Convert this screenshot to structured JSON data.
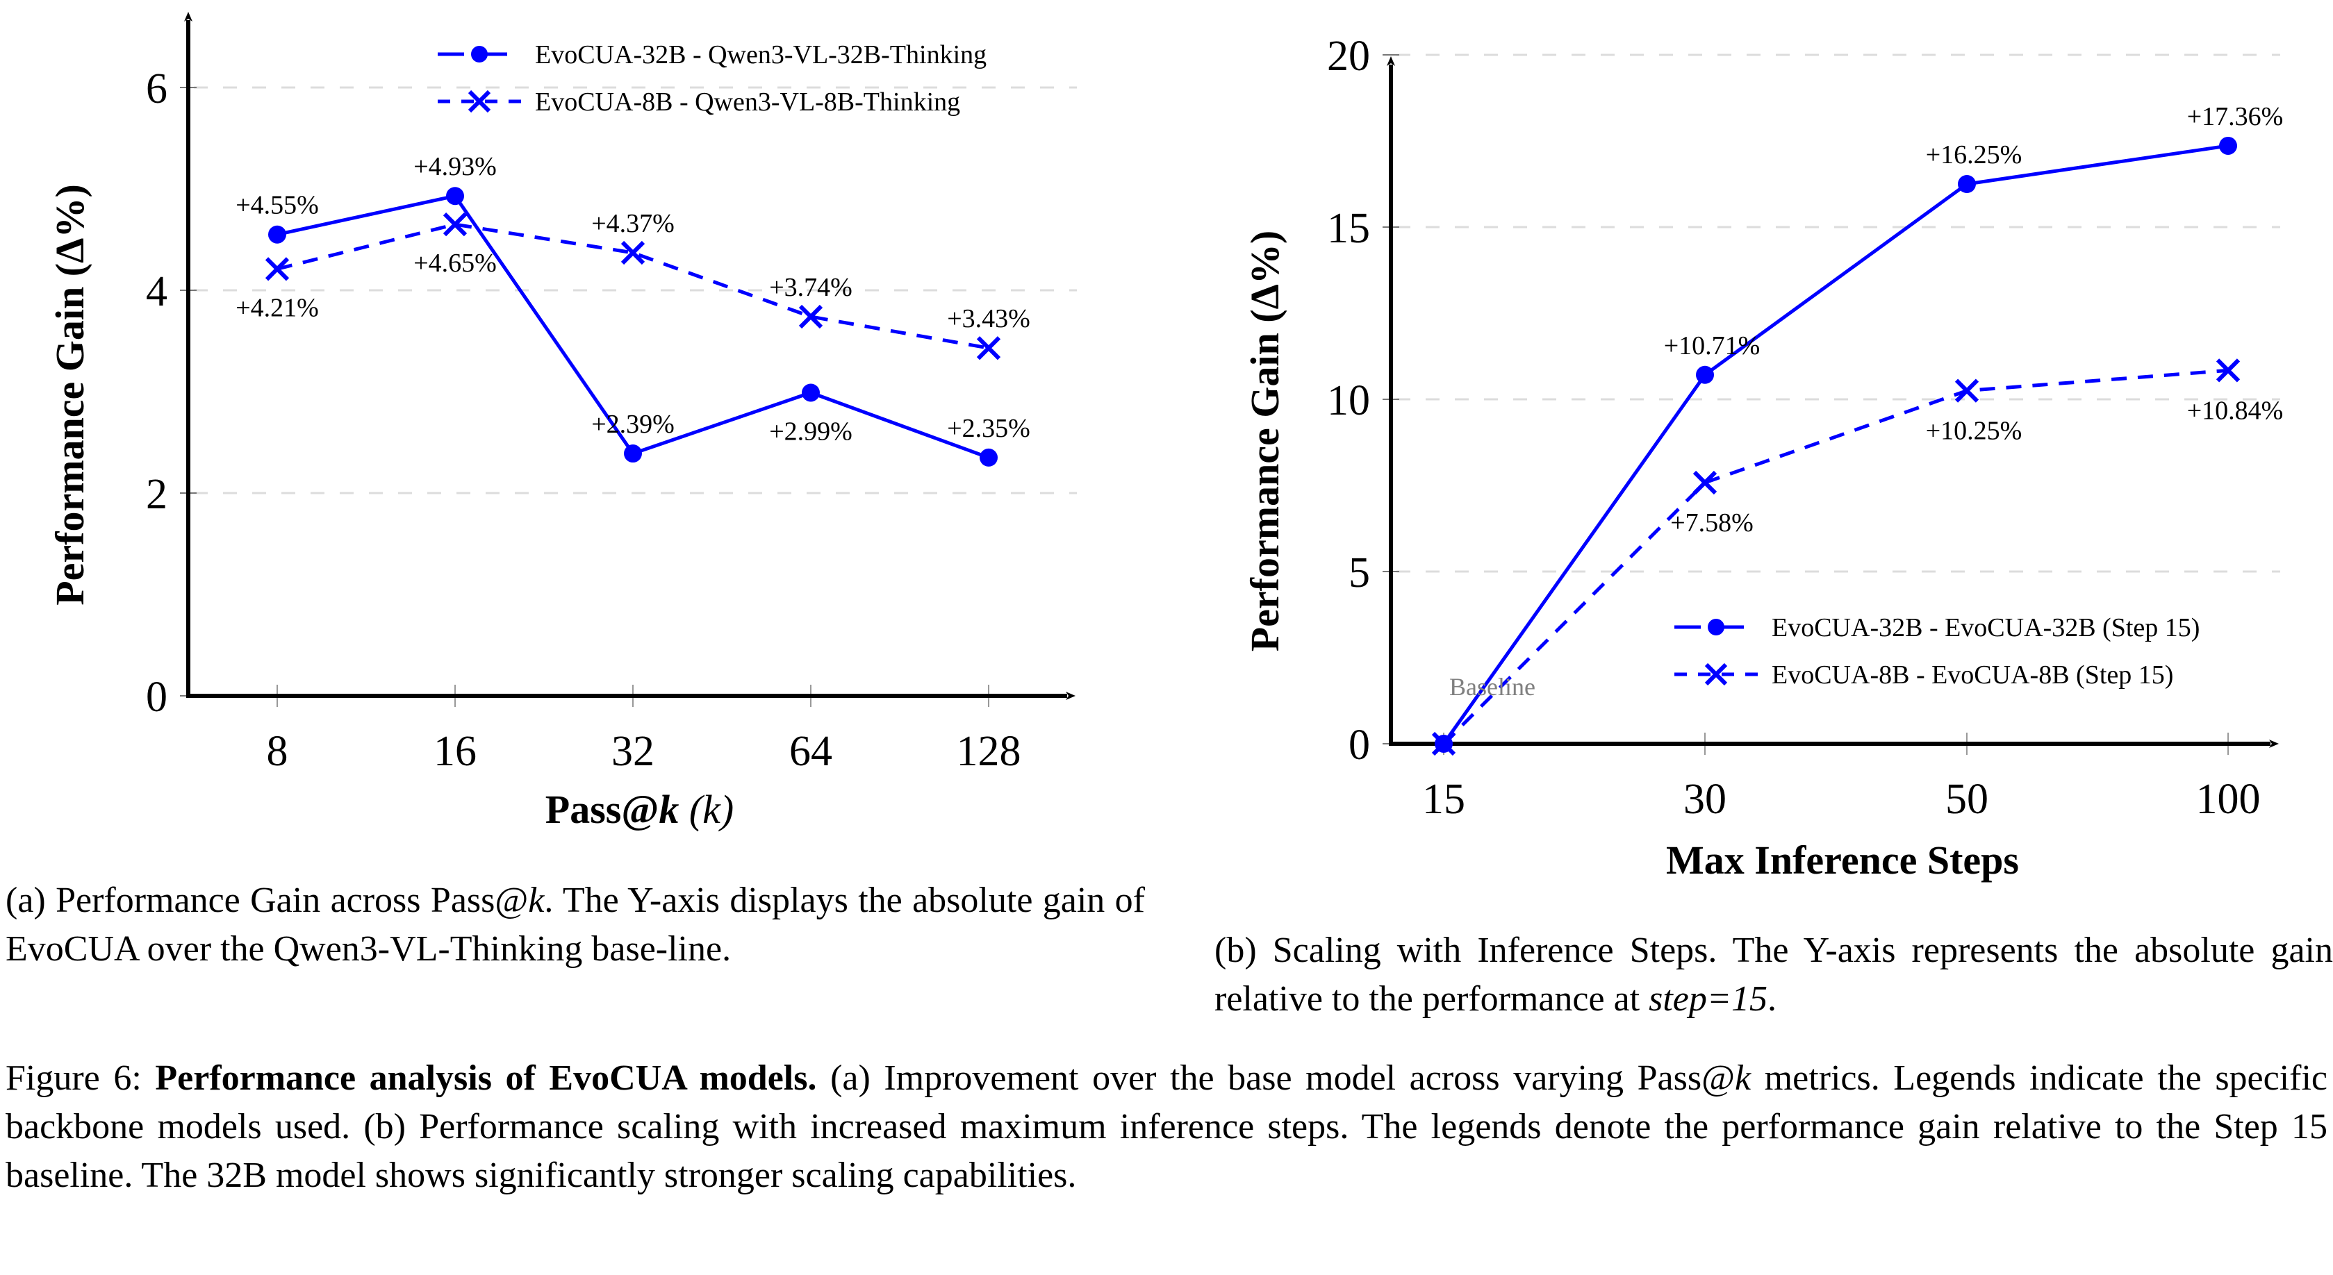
{
  "chart_data": [
    {
      "id": "a",
      "type": "line",
      "title": "",
      "xlabel": "Pass@k (k)",
      "xlabel_parts": {
        "bold": "Pass@",
        "bold_italic": "k",
        "rest": " (k)"
      },
      "ylabel": "Performance Gain (Δ%)",
      "categories": [
        "8",
        "16",
        "32",
        "64",
        "128"
      ],
      "x_scale": "categorical",
      "ylim": [
        0,
        6.8
      ],
      "yticks": [
        0,
        2,
        4,
        6
      ],
      "grid": "horizontal dashed",
      "legend_position": "top-right",
      "series": [
        {
          "name": "EvoCUA-32B - Qwen3-VL-32B-Thinking",
          "style": "solid",
          "marker": "circle",
          "color": "#0000ff",
          "values": [
            4.55,
            4.93,
            2.39,
            2.99,
            2.35
          ],
          "labels": [
            "+4.55%",
            "+4.93%",
            "+2.39%",
            "+2.99%",
            "+2.35%"
          ],
          "label_positions": [
            "above",
            "above",
            "above",
            "below",
            "above"
          ]
        },
        {
          "name": "EvoCUA-8B - Qwen3-VL-8B-Thinking",
          "style": "dashed",
          "marker": "x",
          "color": "#0000ff",
          "values": [
            4.21,
            4.65,
            4.37,
            3.74,
            3.43
          ],
          "labels": [
            "+4.21%",
            "+4.65%",
            "+4.37%",
            "+3.74%",
            "+3.43%"
          ],
          "label_positions": [
            "below",
            "below",
            "above",
            "above",
            "above"
          ]
        }
      ]
    },
    {
      "id": "b",
      "type": "line",
      "title": "",
      "xlabel": "Max Inference Steps",
      "ylabel": "Performance Gain (Δ%)",
      "categories": [
        "15",
        "30",
        "50",
        "100"
      ],
      "x_scale": "categorical",
      "ylim": [
        0,
        20
      ],
      "yticks": [
        0,
        5,
        10,
        15,
        20
      ],
      "grid": "horizontal dashed",
      "legend_position": "bottom-right",
      "annotation": "Baseline",
      "series": [
        {
          "name": "EvoCUA-32B - EvoCUA-32B (Step 15)",
          "style": "solid",
          "marker": "circle",
          "color": "#0000ff",
          "values": [
            0,
            10.71,
            16.25,
            17.36
          ],
          "labels": [
            "",
            "+10.71%",
            "+16.25%",
            "+17.36%"
          ],
          "label_positions": [
            "none",
            "above",
            "above",
            "above"
          ]
        },
        {
          "name": "EvoCUA-8B - EvoCUA-8B (Step 15)",
          "style": "dashed",
          "marker": "x",
          "color": "#0000ff",
          "values": [
            0,
            7.58,
            10.25,
            10.84
          ],
          "labels": [
            "",
            "+7.58%",
            "+10.25%",
            "+10.84%"
          ],
          "label_positions": [
            "none",
            "below",
            "below",
            "below"
          ]
        }
      ]
    }
  ],
  "captions": {
    "sub_a": {
      "prefix": "(a) Performance Gain across Pass@",
      "italic": "k",
      "suffix": ". The Y-axis displays the absolute gain of EvoCUA over the Qwen3-VL-Thinking base-line."
    },
    "sub_b": {
      "prefix": "(b) Scaling with Inference Steps.  The Y-axis represents the absolute gain relative to the performance at ",
      "italic": "step=15",
      "suffix": "."
    },
    "figure": {
      "label": "Figure 6: ",
      "bold": "Performance analysis of EvoCUA models.",
      "part1": " (a) Improvement over the base model across varying Pass@",
      "italic": "k",
      "part2": " metrics.  Legends indicate the specific backbone models used.  (b) Performance scaling with increased maximum inference steps.  The legends denote the performance gain relative to the Step 15 baseline.  The 32B model shows significantly stronger scaling capabilities."
    }
  }
}
